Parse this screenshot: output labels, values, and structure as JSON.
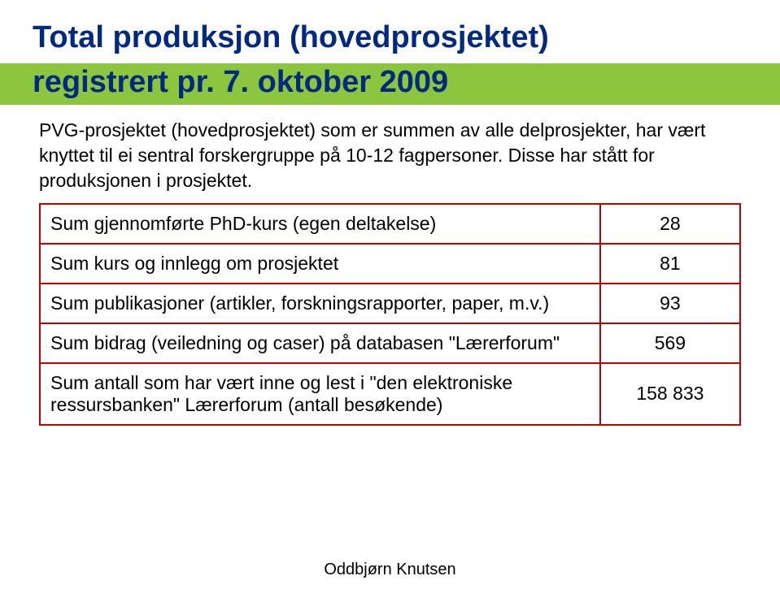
{
  "title": {
    "line1": "Total produksjon (hovedprosjektet)",
    "line2": "registrert pr. 7. oktober 2009",
    "color": "#002a7f",
    "fontsize": 38,
    "subtitle_bg": "#8cc63f"
  },
  "intro": {
    "text": "PVG-prosjektet (hovedprosjektet) som er summen av alle delprosjekter, har vært knyttet til ei sentral forskergruppe på 10-12 fagpersoner. Disse har stått for produksjonen i prosjektet.",
    "fontsize": 23,
    "color": "#000000"
  },
  "table": {
    "border_color": "#c00000",
    "rows": [
      {
        "label": "Sum gjennomførte PhD-kurs (egen deltakelse)",
        "value": "28"
      },
      {
        "label": "Sum kurs og innlegg om prosjektet",
        "value": "81"
      },
      {
        "label": "Sum publikasjoner (artikler, forskningsrapporter, paper, m.v.)",
        "value": "93"
      },
      {
        "label": "Sum bidrag (veiledning og caser) på databasen \"Lærerforum\"",
        "value": "569"
      },
      {
        "label": "Sum antall som har vært inne og lest i \"den elektroniske ressursbanken\" Lærerforum (antall besøkende)",
        "value": "158 833"
      }
    ]
  },
  "footer": {
    "text": "Oddbjørn Knutsen",
    "fontsize": 20
  }
}
